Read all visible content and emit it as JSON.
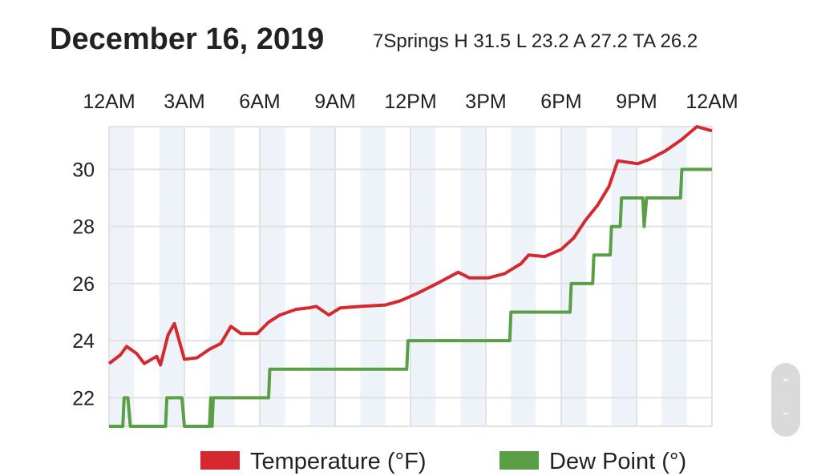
{
  "chart_data": {
    "type": "line",
    "title": "December 16, 2019",
    "subtitle": "7Springs H 31.5 L 23.2 A 27.2 TA 26.2",
    "xlabel": "",
    "ylabel": "",
    "xlim": [
      0,
      24
    ],
    "ylim": [
      21,
      31.5
    ],
    "x_ticks": [
      0,
      3,
      6,
      9,
      12,
      15,
      18,
      21,
      24
    ],
    "x_tick_labels": [
      "12AM",
      "3AM",
      "6AM",
      "9AM",
      "12PM",
      "3PM",
      "6PM",
      "9PM",
      "12AM"
    ],
    "y_ticks": [
      22,
      24,
      26,
      28,
      30
    ],
    "y_tick_labels": [
      "22",
      "24",
      "26",
      "28",
      "30"
    ],
    "grid": true,
    "shaded_hours": "alternate hours shaded",
    "legend_position": "bottom",
    "series": [
      {
        "name": "Temperature (°F)",
        "color": "#d42a2f",
        "points": [
          [
            0,
            23.2
          ],
          [
            0.45,
            23.5
          ],
          [
            0.7,
            23.8
          ],
          [
            1.1,
            23.55
          ],
          [
            1.4,
            23.2
          ],
          [
            1.9,
            23.45
          ],
          [
            2.05,
            23.15
          ],
          [
            2.35,
            24.2
          ],
          [
            2.6,
            24.6
          ],
          [
            3.0,
            23.35
          ],
          [
            3.5,
            23.4
          ],
          [
            4.0,
            23.7
          ],
          [
            4.45,
            23.9
          ],
          [
            4.85,
            24.5
          ],
          [
            5.25,
            24.25
          ],
          [
            5.9,
            24.25
          ],
          [
            6.35,
            24.65
          ],
          [
            6.8,
            24.9
          ],
          [
            7.45,
            25.1
          ],
          [
            7.95,
            25.15
          ],
          [
            8.25,
            25.2
          ],
          [
            8.75,
            24.9
          ],
          [
            9.2,
            25.15
          ],
          [
            10,
            25.2
          ],
          [
            11,
            25.25
          ],
          [
            11.6,
            25.4
          ],
          [
            12.25,
            25.65
          ],
          [
            13.05,
            26.0
          ],
          [
            13.9,
            26.4
          ],
          [
            14.35,
            26.2
          ],
          [
            15.1,
            26.2
          ],
          [
            15.75,
            26.35
          ],
          [
            16.4,
            26.7
          ],
          [
            16.7,
            27.0
          ],
          [
            17.35,
            26.95
          ],
          [
            18,
            27.2
          ],
          [
            18.5,
            27.6
          ],
          [
            18.95,
            28.2
          ],
          [
            19.45,
            28.75
          ],
          [
            19.9,
            29.4
          ],
          [
            20.25,
            30.3
          ],
          [
            21.05,
            30.2
          ],
          [
            21.5,
            30.35
          ],
          [
            22.15,
            30.65
          ],
          [
            22.8,
            31.05
          ],
          [
            23.4,
            31.5
          ],
          [
            24,
            31.35
          ]
        ]
      },
      {
        "name": "Dew Point (°)",
        "color": "#5a9e45",
        "points": [
          [
            0,
            21
          ],
          [
            0.55,
            21
          ],
          [
            0.6,
            22
          ],
          [
            0.75,
            22
          ],
          [
            0.85,
            21
          ],
          [
            2.25,
            21
          ],
          [
            2.3,
            22
          ],
          [
            2.9,
            22
          ],
          [
            3.0,
            21
          ],
          [
            4.0,
            21
          ],
          [
            4.05,
            22
          ],
          [
            4.1,
            21
          ],
          [
            4.15,
            22
          ],
          [
            6.35,
            22
          ],
          [
            6.4,
            23
          ],
          [
            11.85,
            23
          ],
          [
            11.9,
            24
          ],
          [
            15.95,
            24
          ],
          [
            16,
            25
          ],
          [
            18.35,
            25
          ],
          [
            18.4,
            26
          ],
          [
            19.25,
            26
          ],
          [
            19.3,
            27
          ],
          [
            19.95,
            27
          ],
          [
            20,
            28
          ],
          [
            20.35,
            28
          ],
          [
            20.4,
            29
          ],
          [
            21.25,
            29
          ],
          [
            21.3,
            28
          ],
          [
            21.4,
            29
          ],
          [
            22.75,
            29
          ],
          [
            22.8,
            30
          ],
          [
            24,
            30
          ]
        ]
      }
    ]
  },
  "scroll_widget": {
    "up_icon": "chevron-up-icon",
    "down_icon": "chevron-down-icon"
  }
}
